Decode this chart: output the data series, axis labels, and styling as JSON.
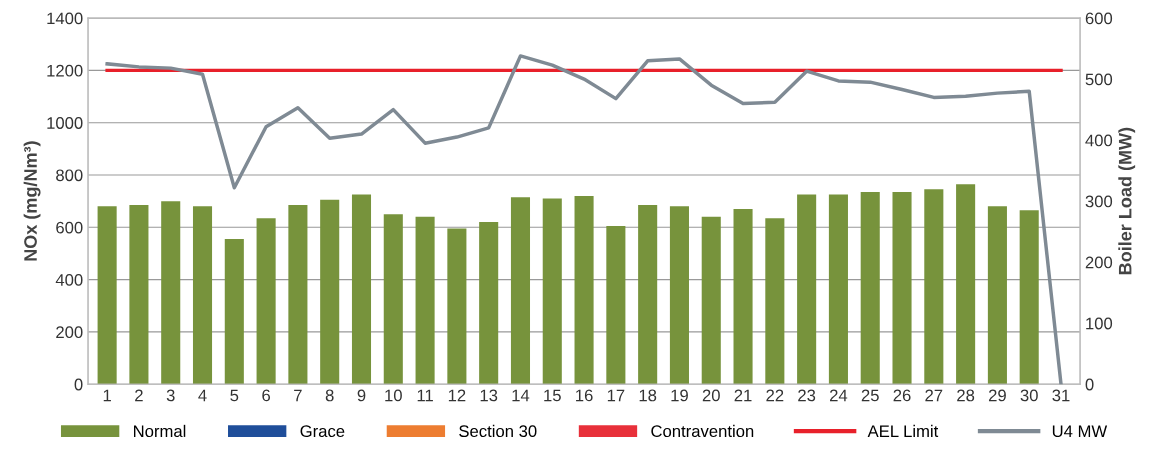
{
  "chart_data": {
    "type": "bar",
    "ylabel": "NOx (mg/Nm³)",
    "y2label": "Boiler Load (MW)",
    "categories": [
      "1",
      "2",
      "3",
      "4",
      "5",
      "6",
      "7",
      "8",
      "9",
      "10",
      "11",
      "12",
      "13",
      "14",
      "15",
      "16",
      "17",
      "18",
      "19",
      "20",
      "21",
      "22",
      "23",
      "24",
      "25",
      "26",
      "27",
      "28",
      "29",
      "30",
      "31"
    ],
    "series": [
      {
        "name": "Normal",
        "color": "#77933c",
        "values": [
          680,
          685,
          700,
          680,
          555,
          635,
          685,
          705,
          725,
          650,
          640,
          595,
          620,
          715,
          710,
          720,
          605,
          685,
          680,
          640,
          670,
          635,
          725,
          725,
          735,
          735,
          745,
          765,
          680,
          665,
          null
        ]
      },
      {
        "name": "Grace",
        "color": "#1f4e9a",
        "values": [
          null,
          null,
          null,
          null,
          null,
          null,
          null,
          null,
          null,
          null,
          null,
          null,
          null,
          null,
          null,
          null,
          null,
          null,
          null,
          null,
          null,
          null,
          null,
          null,
          null,
          null,
          null,
          null,
          null,
          null,
          null
        ]
      },
      {
        "name": "Section 30",
        "color": "#ed7d31",
        "values": [
          null,
          null,
          null,
          null,
          null,
          null,
          null,
          null,
          null,
          null,
          null,
          null,
          null,
          null,
          null,
          null,
          null,
          null,
          null,
          null,
          null,
          null,
          null,
          null,
          null,
          null,
          null,
          null,
          null,
          null,
          null
        ]
      },
      {
        "name": "Contravention",
        "color": "#e8303a",
        "values": [
          null,
          null,
          null,
          null,
          null,
          null,
          null,
          null,
          null,
          null,
          null,
          null,
          null,
          null,
          null,
          null,
          null,
          null,
          null,
          null,
          null,
          null,
          null,
          null,
          null,
          null,
          null,
          null,
          null,
          null,
          null
        ]
      },
      {
        "name": "AEL Limit",
        "type": "line",
        "color": "#e8202a",
        "values": [
          1200,
          1200,
          1200,
          1200,
          1200,
          1200,
          1200,
          1200,
          1200,
          1200,
          1200,
          1200,
          1200,
          1200,
          1200,
          1200,
          1200,
          1200,
          1200,
          1200,
          1200,
          1200,
          1200,
          1200,
          1200,
          1200,
          1200,
          1200,
          1200,
          1200,
          1200
        ]
      },
      {
        "name": "U4 MW",
        "type": "line",
        "axis": "y2",
        "color": "#7f8a94",
        "values": [
          525,
          520,
          518,
          508,
          322,
          422,
          453,
          403,
          410,
          450,
          395,
          405,
          420,
          538,
          523,
          500,
          468,
          530,
          533,
          490,
          460,
          462,
          513,
          497,
          495,
          483,
          470,
          472,
          477,
          480,
          0
        ]
      }
    ],
    "ylim": [
      0,
      1400
    ],
    "yticks": [
      0,
      200,
      400,
      600,
      800,
      1000,
      1200,
      1400
    ],
    "y2lim": [
      0,
      600
    ],
    "y2ticks": [
      0,
      100,
      200,
      300,
      400,
      500,
      600
    ],
    "grid": "y",
    "legend": "bottom"
  }
}
